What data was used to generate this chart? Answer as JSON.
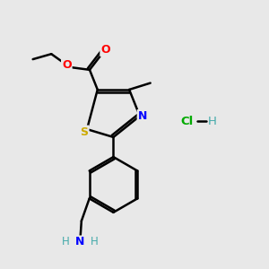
{
  "background_color": "#e8e8e8",
  "bond_color": "#000000",
  "atom_colors": {
    "O": "#ff0000",
    "N": "#0000ff",
    "S": "#ccaa00",
    "C": "#000000",
    "H": "#44aaaa",
    "Cl": "#00aa00"
  },
  "figsize": [
    3.0,
    3.0
  ],
  "dpi": 100
}
